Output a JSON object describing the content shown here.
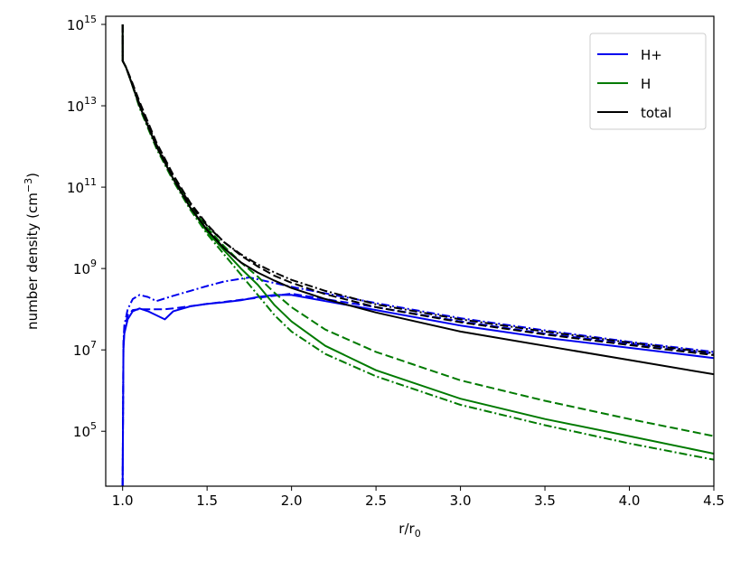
{
  "chart_data": {
    "type": "line",
    "title": "",
    "xlabel_main": "r/r",
    "xlabel_sub": "0",
    "ylabel_main": "number density (cm",
    "ylabel_exp": "−3",
    "ylabel_close": ")",
    "xlim": [
      0.9,
      4.5
    ],
    "ylim_log10": [
      3.65,
      15.2
    ],
    "yscale": "log",
    "grid": false,
    "legend_position": "top-right",
    "x_ticks": [
      1.0,
      1.5,
      2.0,
      2.5,
      3.0,
      3.5,
      4.0,
      4.5
    ],
    "x_tick_labels": [
      "1.0",
      "1.5",
      "2.0",
      "2.5",
      "3.0",
      "3.5",
      "4.0",
      "4.5"
    ],
    "y_ticks": [
      {
        "base": "10",
        "exp": "5",
        "log": 5
      },
      {
        "base": "10",
        "exp": "7",
        "log": 7
      },
      {
        "base": "10",
        "exp": "9",
        "log": 9
      },
      {
        "base": "10",
        "exp": "11",
        "log": 11
      },
      {
        "base": "10",
        "exp": "13",
        "log": 13
      },
      {
        "base": "10",
        "exp": "15",
        "log": 15
      }
    ],
    "legend": [
      {
        "label": "H+",
        "color": "#0000ee"
      },
      {
        "label": "H",
        "color": "#007a00"
      },
      {
        "label": "total",
        "color": "#000000"
      }
    ],
    "series": [
      {
        "name": "H+",
        "color": "#0000ee",
        "dash": "solid",
        "x": [
          1.0,
          1.005,
          1.01,
          1.03,
          1.06,
          1.1,
          1.15,
          1.2,
          1.25,
          1.3,
          1.4,
          1.5,
          1.6,
          1.7,
          1.8,
          1.9,
          2.0,
          2.2,
          2.5,
          3.0,
          3.5,
          4.0,
          4.5
        ],
        "logy": [
          3.65,
          7.0,
          7.4,
          7.75,
          7.95,
          8.02,
          7.95,
          7.85,
          7.75,
          7.95,
          8.07,
          8.13,
          8.17,
          8.22,
          8.3,
          8.35,
          8.35,
          8.2,
          7.98,
          7.6,
          7.3,
          7.05,
          6.8
        ]
      },
      {
        "name": "H+",
        "color": "#0000ee",
        "dash": "dashed",
        "x": [
          1.0,
          1.005,
          1.01,
          1.03,
          1.06,
          1.1,
          1.15,
          1.2,
          1.25,
          1.3,
          1.5,
          1.8,
          2.0,
          2.5,
          3.0,
          3.5,
          4.0,
          4.5
        ],
        "logy": [
          3.65,
          7.1,
          7.5,
          7.85,
          7.98,
          8.0,
          8.0,
          8.0,
          8.0,
          8.02,
          8.13,
          8.28,
          8.38,
          8.05,
          7.7,
          7.4,
          7.15,
          6.9
        ]
      },
      {
        "name": "H+",
        "color": "#0000ee",
        "dash": "dashdot",
        "x": [
          1.0,
          1.005,
          1.01,
          1.03,
          1.06,
          1.1,
          1.15,
          1.2,
          1.3,
          1.4,
          1.5,
          1.6,
          1.75,
          2.0,
          2.5,
          3.0,
          3.5,
          4.0,
          4.5
        ],
        "logy": [
          3.65,
          7.2,
          7.6,
          8.0,
          8.25,
          8.35,
          8.3,
          8.2,
          8.33,
          8.45,
          8.57,
          8.68,
          8.78,
          8.55,
          8.15,
          7.78,
          7.48,
          7.2,
          6.95
        ]
      },
      {
        "name": "H",
        "color": "#007a00",
        "dash": "solid",
        "x": [
          1.0,
          1.0005,
          1.02,
          1.05,
          1.1,
          1.2,
          1.3,
          1.4,
          1.5,
          1.6,
          1.7,
          1.8,
          1.9,
          2.0,
          2.2,
          2.5,
          3.0,
          3.5,
          4.0,
          4.5
        ],
        "logy": [
          15.0,
          14.1,
          13.95,
          13.6,
          13.0,
          12.0,
          11.2,
          10.5,
          9.9,
          9.45,
          9.0,
          8.6,
          8.1,
          7.7,
          7.1,
          6.5,
          5.8,
          5.3,
          4.88,
          4.45
        ]
      },
      {
        "name": "H",
        "color": "#007a00",
        "dash": "dashed",
        "x": [
          1.0,
          1.0005,
          1.02,
          1.05,
          1.1,
          1.2,
          1.3,
          1.4,
          1.5,
          1.6,
          1.7,
          1.8,
          1.9,
          2.0,
          2.2,
          2.5,
          3.0,
          3.5,
          4.0,
          4.5
        ],
        "logy": [
          15.0,
          14.1,
          13.95,
          13.6,
          13.05,
          12.05,
          11.25,
          10.55,
          10.0,
          9.55,
          9.15,
          8.8,
          8.4,
          8.05,
          7.5,
          6.95,
          6.25,
          5.75,
          5.3,
          4.88
        ]
      },
      {
        "name": "H",
        "color": "#007a00",
        "dash": "dashdot",
        "x": [
          1.0,
          1.0005,
          1.02,
          1.05,
          1.1,
          1.2,
          1.3,
          1.4,
          1.5,
          1.6,
          1.7,
          1.8,
          1.9,
          2.0,
          2.2,
          2.5,
          3.0,
          3.5,
          4.0,
          4.5
        ],
        "logy": [
          15.0,
          14.1,
          13.95,
          13.6,
          12.95,
          11.95,
          11.15,
          10.45,
          9.85,
          9.35,
          8.85,
          8.35,
          7.85,
          7.45,
          6.9,
          6.35,
          5.65,
          5.15,
          4.7,
          4.3
        ]
      },
      {
        "name": "total",
        "color": "#000000",
        "dash": "solid",
        "x": [
          1.0,
          1.0005,
          1.02,
          1.05,
          1.1,
          1.2,
          1.3,
          1.4,
          1.5,
          1.6,
          1.7,
          1.8,
          1.9,
          2.0,
          2.2,
          2.5,
          3.0,
          3.5,
          4.0,
          4.5
        ],
        "logy": [
          15.0,
          14.1,
          13.95,
          13.6,
          13.0,
          12.0,
          11.2,
          10.5,
          9.95,
          9.5,
          9.15,
          8.9,
          8.7,
          8.52,
          8.25,
          7.92,
          7.45,
          7.1,
          6.75,
          6.4
        ]
      },
      {
        "name": "total",
        "color": "#000000",
        "dash": "dashed",
        "x": [
          1.0,
          1.0005,
          1.02,
          1.05,
          1.1,
          1.2,
          1.3,
          1.4,
          1.5,
          1.6,
          1.7,
          1.8,
          1.9,
          2.0,
          2.2,
          2.5,
          3.0,
          3.5,
          4.0,
          4.5
        ],
        "logy": [
          15.0,
          14.1,
          13.95,
          13.65,
          13.1,
          12.1,
          11.3,
          10.62,
          10.08,
          9.65,
          9.32,
          9.05,
          8.82,
          8.65,
          8.37,
          8.05,
          7.68,
          7.38,
          7.12,
          6.87
        ]
      },
      {
        "name": "total",
        "color": "#000000",
        "dash": "dashdot",
        "x": [
          1.0,
          1.0005,
          1.02,
          1.05,
          1.1,
          1.2,
          1.3,
          1.4,
          1.5,
          1.6,
          1.7,
          1.8,
          1.9,
          2.0,
          2.2,
          2.5,
          3.0,
          3.5,
          4.0,
          4.5
        ],
        "logy": [
          15.0,
          14.1,
          13.95,
          13.6,
          13.05,
          12.05,
          11.25,
          10.58,
          10.05,
          9.65,
          9.35,
          9.1,
          8.9,
          8.72,
          8.45,
          8.12,
          7.75,
          7.45,
          7.18,
          6.92
        ]
      }
    ]
  }
}
